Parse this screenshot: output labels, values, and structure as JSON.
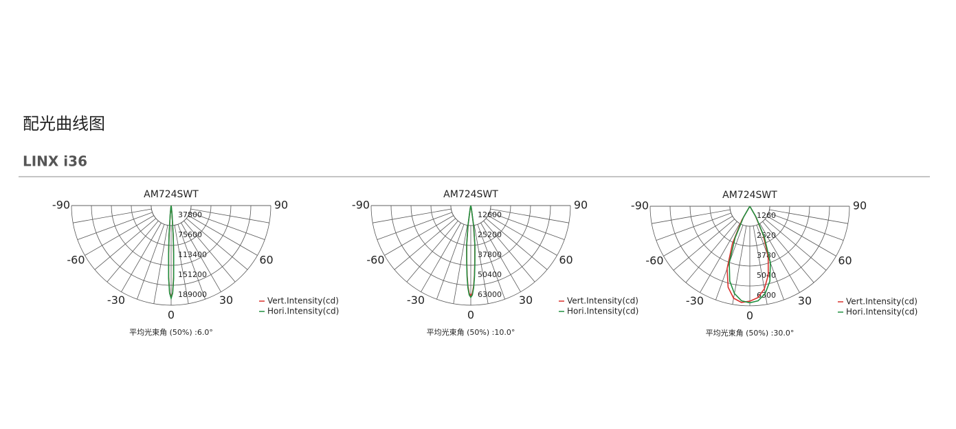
{
  "page": {
    "heading": "配光曲线图",
    "subheading": "LINX i36"
  },
  "chart_data": [
    {
      "type": "polar",
      "title": "AM724SWT",
      "note": "平均光束角 (50%) :6.0°",
      "theta": [
        -12,
        -8,
        -6,
        -4,
        -3,
        -2,
        -1,
        0,
        1,
        2,
        3,
        4,
        6,
        8,
        12
      ],
      "series": [
        {
          "name": "Vert.Intensity(cd)",
          "color": "#d9302b",
          "values": [
            0,
            3000,
            15000,
            55000,
            90000,
            135000,
            165000,
            175000,
            165000,
            135000,
            90000,
            55000,
            15000,
            3000,
            0
          ]
        },
        {
          "name": "Hori.Intensity(cd)",
          "color": "#1f8f3f",
          "values": [
            0,
            4000,
            17000,
            58000,
            92000,
            137000,
            166000,
            176000,
            166000,
            138000,
            93000,
            57000,
            16000,
            3500,
            0
          ]
        }
      ],
      "rlim": [
        0,
        189000
      ],
      "rticks": [
        37800,
        75600,
        113400,
        151200,
        189000
      ],
      "thetalim": [
        -90,
        90
      ],
      "thetaticks": [
        -90,
        -60,
        -30,
        0,
        30,
        60,
        90
      ],
      "theta_grid_step": 10
    },
    {
      "type": "polar",
      "title": "AM724SWT",
      "note": "平均光束角 (50%) :10.0°",
      "theta": [
        -16,
        -12,
        -8,
        -6,
        -5,
        -4,
        -3,
        -2,
        -1,
        0,
        1,
        2,
        3,
        4,
        5,
        6,
        8,
        12,
        16
      ],
      "series": [
        {
          "name": "Vert.Intensity(cd)",
          "color": "#d9302b",
          "values": [
            0,
            1500,
            12000,
            24000,
            29000,
            36000,
            44000,
            51000,
            55500,
            57000,
            55500,
            51000,
            44000,
            36000,
            29000,
            24000,
            12000,
            1500,
            0
          ]
        },
        {
          "name": "Hori.Intensity(cd)",
          "color": "#1f8f3f",
          "values": [
            0,
            1800,
            13000,
            25000,
            30000,
            37000,
            45000,
            52000,
            56500,
            58000,
            56500,
            52000,
            45000,
            37000,
            30000,
            25000,
            13000,
            1800,
            0
          ]
        }
      ],
      "rlim": [
        0,
        63000
      ],
      "rticks": [
        12600,
        25200,
        37800,
        50400,
        63000
      ],
      "thetalim": [
        -90,
        90
      ],
      "thetaticks": [
        -90,
        -60,
        -30,
        0,
        30,
        60,
        90
      ],
      "theta_grid_step": 10
    },
    {
      "type": "polar",
      "title": "AM724SWT",
      "note": "平均光束角 (50%) :30.0°",
      "theta": [
        -40,
        -30,
        -25,
        -20,
        -15,
        -10,
        -5,
        0,
        5,
        10,
        15,
        20,
        25,
        30,
        40
      ],
      "series": [
        {
          "name": "Vert.Intensity(cd)",
          "color": "#d9302b",
          "values": [
            0,
            1000,
            2600,
            4200,
            5300,
            5900,
            6100,
            6000,
            5800,
            5300,
            4500,
            3400,
            2000,
            700,
            0
          ]
        },
        {
          "name": "Hori.Intensity(cd)",
          "color": "#1f8f3f",
          "values": [
            0,
            800,
            2200,
            3800,
            4900,
            5600,
            6000,
            6100,
            6000,
            5600,
            4900,
            3800,
            2200,
            800,
            0
          ]
        }
      ],
      "rlim": [
        0,
        6300
      ],
      "rticks": [
        1260,
        2520,
        3780,
        5040,
        6300
      ],
      "thetalim": [
        -90,
        90
      ],
      "thetaticks": [
        -90,
        -60,
        -30,
        0,
        30,
        60,
        90
      ],
      "theta_grid_step": 10
    }
  ]
}
